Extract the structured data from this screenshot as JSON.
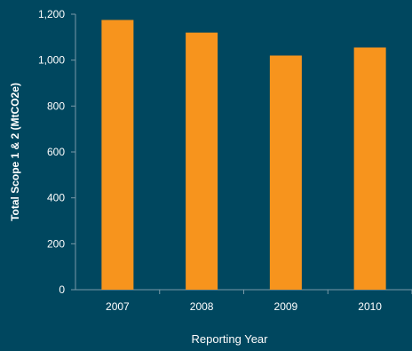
{
  "chart_data": {
    "type": "bar",
    "categories": [
      "2007",
      "2008",
      "2009",
      "2010"
    ],
    "values": [
      1175,
      1120,
      1020,
      1055
    ],
    "title": "",
    "xlabel": "Reporting Year",
    "ylabel": "Total Scope 1 & 2 (MtCO2e)",
    "ylim": [
      0,
      1200
    ],
    "yticks": [
      0,
      200,
      400,
      600,
      800,
      1000,
      1200
    ],
    "ytick_labels": [
      "0",
      "200",
      "400",
      "600",
      "800",
      "1,000",
      "1,200"
    ],
    "grid": false,
    "legend": "none",
    "colors": {
      "background": "#00475f",
      "bar": "#f7941d",
      "axis": "#7a9aa8",
      "text": "#ffffff"
    }
  }
}
